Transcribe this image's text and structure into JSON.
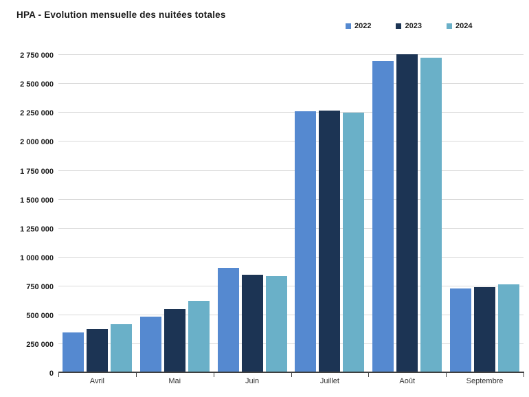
{
  "title": "HPA - Evolution mensuelle des nuitées totales",
  "colors": {
    "series_2022": "#5589d0",
    "series_2023": "#1c3454",
    "series_2024": "#6ab0c8",
    "gridline": "#d9d9d9",
    "axis": "#404040",
    "background": "#ffffff"
  },
  "chart_data": {
    "type": "bar",
    "title": "HPA - Evolution mensuelle des nuitées totales",
    "categories": [
      "Avril",
      "Mai",
      "Juin",
      "Juillet",
      "Août",
      "Septembre"
    ],
    "series": [
      {
        "name": "2022",
        "color": "#5589d0",
        "values": [
          350000,
          490000,
          910000,
          2265000,
          2700000,
          730000
        ]
      },
      {
        "name": "2023",
        "color": "#1c3454",
        "values": [
          380000,
          550000,
          850000,
          2270000,
          2760000,
          740000
        ]
      },
      {
        "name": "2024",
        "color": "#6ab0c8",
        "values": [
          420000,
          625000,
          840000,
          2250000,
          2730000,
          765000
        ]
      }
    ],
    "xlabel": "",
    "ylabel": "",
    "ylim": [
      0,
      2870000
    ],
    "ytick_interval": 250000,
    "ytick_labels": [
      "0",
      "250 000",
      "500 000",
      "750 000",
      "1 000 000",
      "1 250 000",
      "1 500 000",
      "1 750 000",
      "2 000 000",
      "2 250 000",
      "2 500 000",
      "2 750 000"
    ],
    "grid": true,
    "legend_position": "top-right"
  }
}
